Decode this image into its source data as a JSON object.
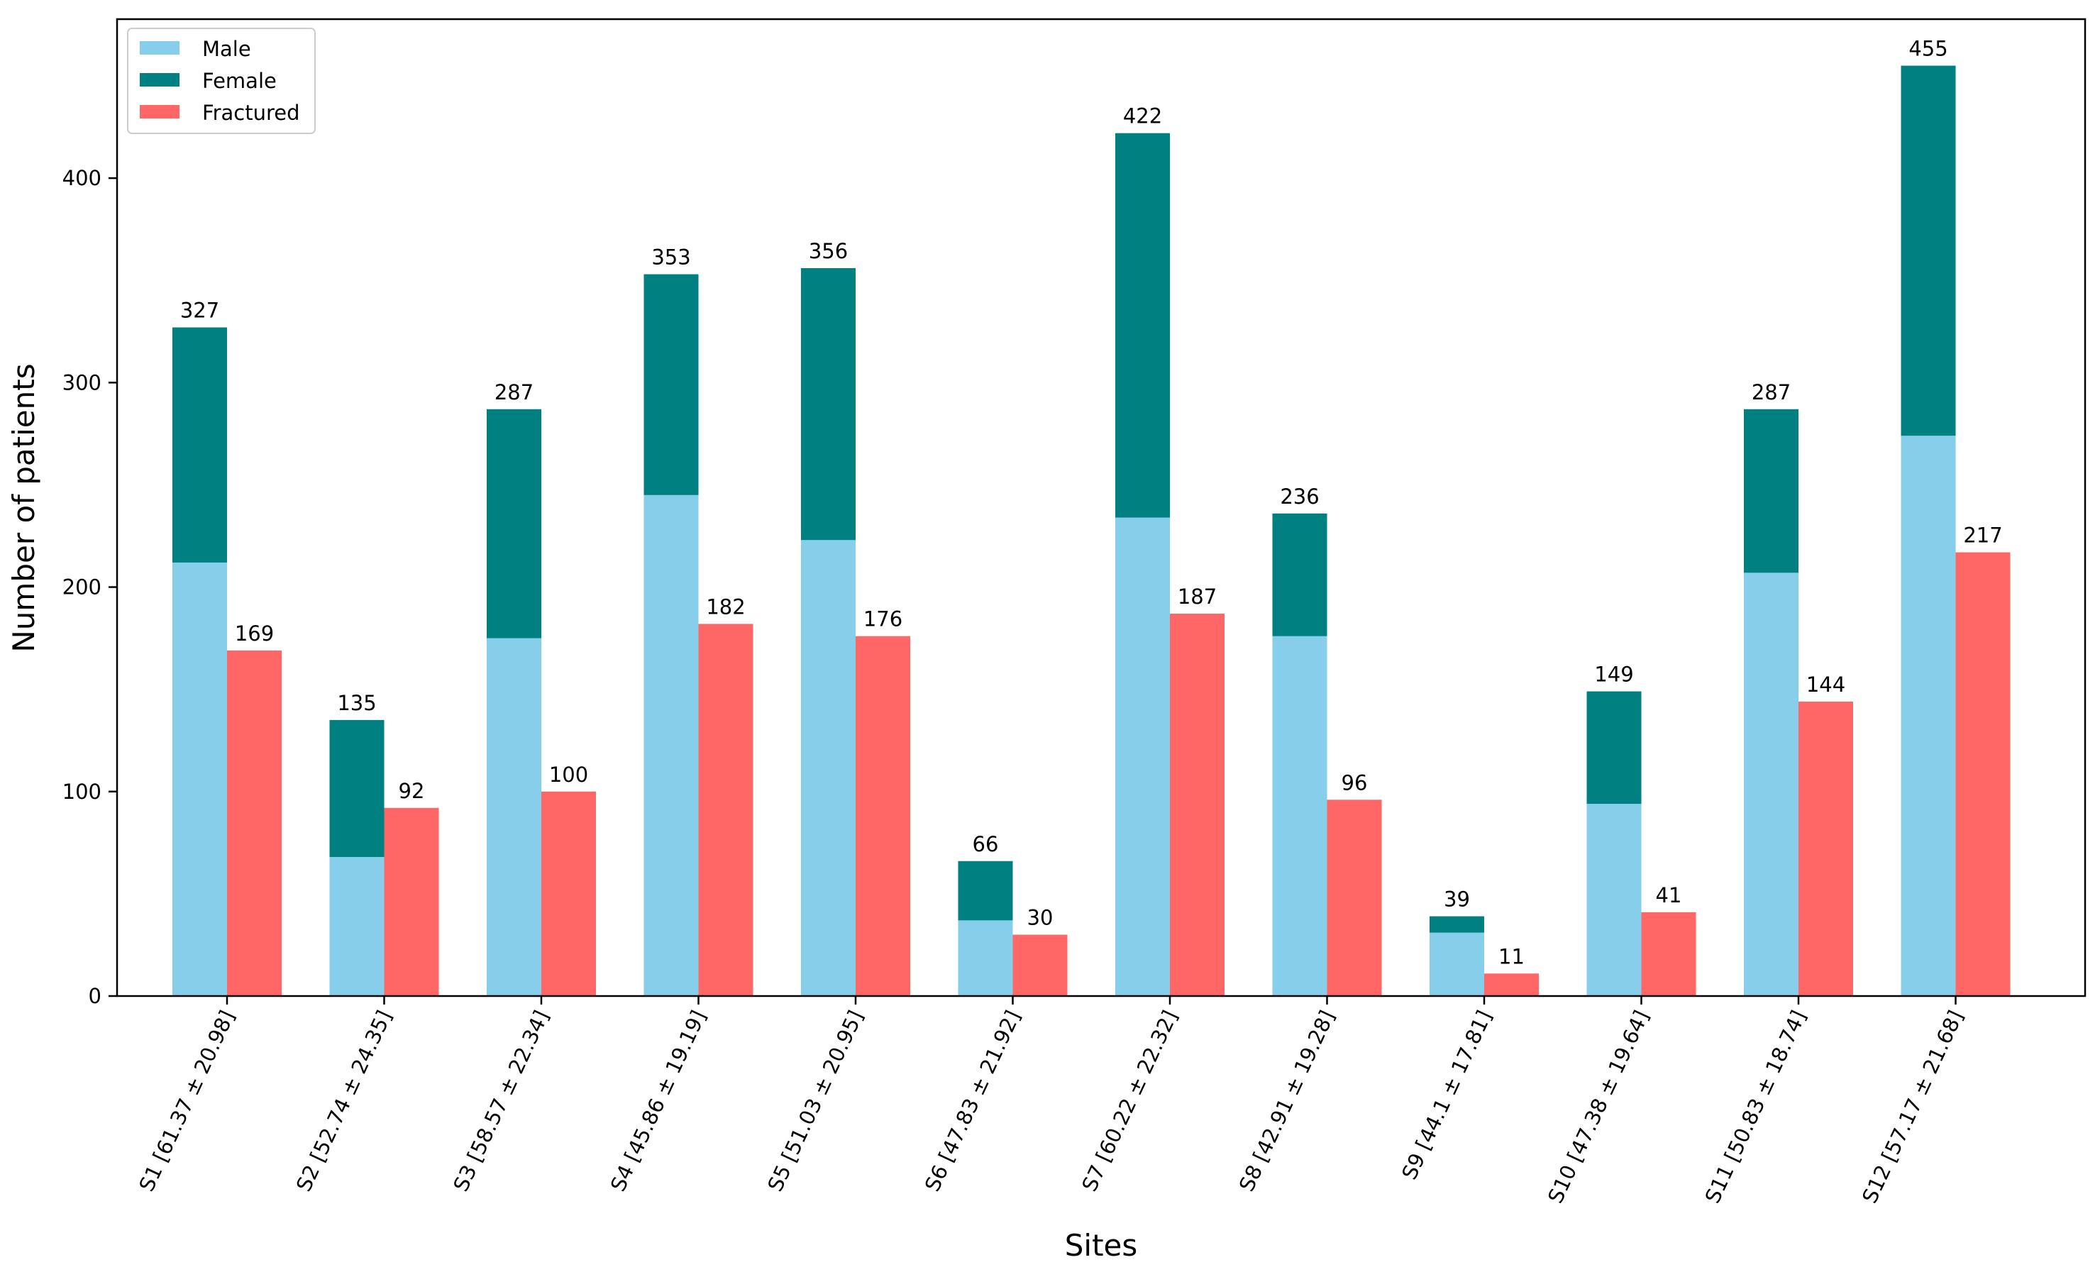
{
  "chart_data": {
    "type": "bar",
    "title": "",
    "xlabel": "Sites",
    "ylabel": "Number of patients",
    "categories": [
      "S1 [61.37 ± 20.98]",
      "S2 [52.74 ± 24.35]",
      "S3 [58.57 ± 22.34]",
      "S4 [45.86 ± 19.19]",
      "S5 [51.03 ± 20.95]",
      "S6 [47.83 ± 21.92]",
      "S7 [60.22 ± 22.32]",
      "S8 [42.91 ± 19.28]",
      "S9 [44.1 ± 17.81]",
      "S10 [47.38 ± 19.64]",
      "S11 [50.83 ± 18.74]",
      "S12 [57.17 ± 21.68]"
    ],
    "series": [
      {
        "name": "Male",
        "color": "#87ceeb",
        "values": [
          212,
          68,
          175,
          245,
          223,
          37,
          234,
          176,
          31,
          94,
          207,
          274
        ]
      },
      {
        "name": "Female",
        "color": "#008080",
        "values": [
          115,
          67,
          112,
          108,
          133,
          29,
          188,
          60,
          8,
          55,
          80,
          181
        ]
      },
      {
        "name": "Fractured",
        "color": "#ff6666",
        "values": [
          169,
          92,
          100,
          182,
          176,
          30,
          187,
          96,
          11,
          41,
          144,
          217
        ]
      }
    ],
    "stack_totals": [
      327,
      135,
      287,
      353,
      356,
      66,
      422,
      236,
      39,
      149,
      287,
      455
    ],
    "stack_total_labels": [
      "327",
      "135",
      "287",
      "353",
      "356",
      "66",
      "422",
      "236",
      "39",
      "149",
      "287",
      "455"
    ],
    "fractured_labels": [
      "169",
      "92",
      "100",
      "182",
      "176",
      "30",
      "187",
      "96",
      "11",
      "41",
      "144",
      "217"
    ],
    "yticks": [
      0,
      100,
      200,
      300,
      400
    ],
    "ytick_labels": [
      "0",
      "100",
      "200",
      "300",
      "400"
    ],
    "ylim": [
      0,
      477.75
    ],
    "legend_location": "upper-left",
    "grid": false
  }
}
